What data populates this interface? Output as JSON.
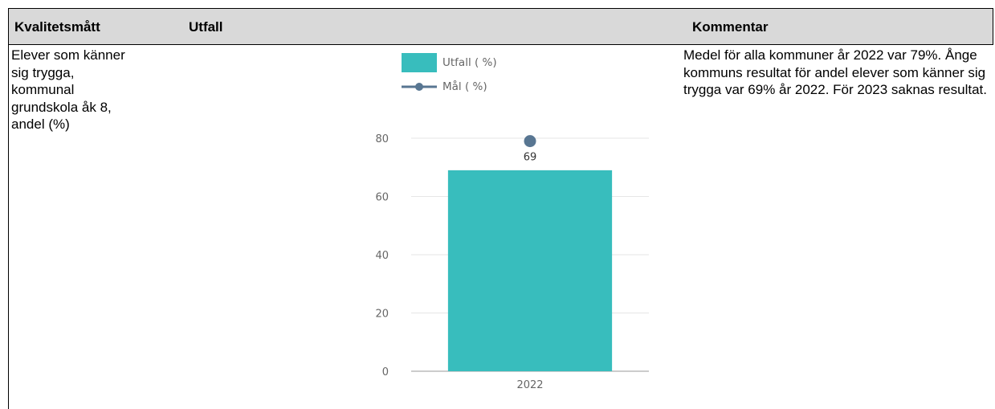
{
  "table": {
    "headers": {
      "measure": "Kvalitetsmått",
      "outcome": "Utfall",
      "comment": "Kommentar"
    },
    "measure_text": "Elever som känner sig trygga, kommunal grundskola åk 8, andel (%)",
    "comment_text": "Medel för alla kommuner år 2022 var 79%. Ånge kommuns resultat för andel elever som känner sig trygga var 69% år 2022. För 2023 saknas resultat."
  },
  "chart_data": {
    "type": "bar",
    "categories": [
      "2022"
    ],
    "series": [
      {
        "name": "Utfall ( %)",
        "type": "bar",
        "values": [
          69
        ],
        "color": "#38bdbd"
      },
      {
        "name": "Mål ( %)",
        "type": "line",
        "values": [
          79
        ],
        "color": "#587692"
      }
    ],
    "data_labels": [
      "69"
    ],
    "ylim": [
      0,
      80
    ],
    "yticks": [
      0,
      20,
      40,
      60,
      80
    ],
    "grid": true,
    "legend_position": "top-left"
  }
}
